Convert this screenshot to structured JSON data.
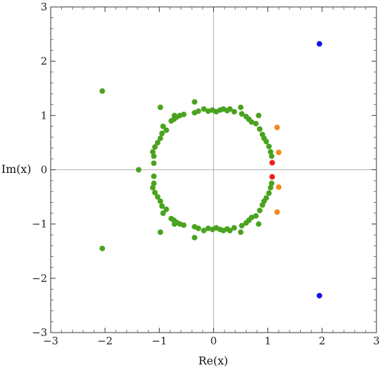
{
  "chart_data": {
    "type": "scatter",
    "title": "",
    "xlabel": "Re(x)",
    "ylabel": "Im(x)",
    "xlim": [
      -3,
      3
    ],
    "ylim": [
      -3,
      3
    ],
    "xticks": [
      -3,
      -2,
      -1,
      0,
      1,
      2,
      3
    ],
    "yticks": [
      -3,
      -2,
      -1,
      0,
      1,
      2,
      3
    ],
    "xtick_labels": [
      "−3",
      "−2",
      "−1",
      "0",
      "1",
      "2",
      "3"
    ],
    "ytick_labels": [
      "−3",
      "−2",
      "−1",
      "0",
      "1",
      "2",
      "3"
    ],
    "grid": false,
    "zero_lines": true,
    "series": [
      {
        "color": "#4aa31f",
        "points": [
          [
            -2.05,
            1.45
          ],
          [
            -2.05,
            -1.45
          ],
          [
            -1.38,
            0.0
          ],
          [
            -1.1,
            0.25
          ],
          [
            -1.1,
            0.12
          ],
          [
            -1.12,
            0.33
          ],
          [
            -1.08,
            0.42
          ],
          [
            -1.03,
            0.5
          ],
          [
            -0.98,
            0.58
          ],
          [
            -0.95,
            0.67
          ],
          [
            -0.93,
            0.8
          ],
          [
            -0.87,
            0.73
          ],
          [
            -0.78,
            0.9
          ],
          [
            -0.73,
            0.93
          ],
          [
            -0.68,
            0.97
          ],
          [
            -0.62,
            1.0
          ],
          [
            -0.55,
            1.02
          ],
          [
            -0.98,
            1.15
          ],
          [
            -0.72,
            1.0
          ],
          [
            -0.35,
            1.25
          ],
          [
            -0.35,
            1.05
          ],
          [
            -0.28,
            1.08
          ],
          [
            -0.18,
            1.12
          ],
          [
            -0.1,
            1.08
          ],
          [
            -0.02,
            1.1
          ],
          [
            0.05,
            1.07
          ],
          [
            0.12,
            1.1
          ],
          [
            0.18,
            1.12
          ],
          [
            0.25,
            1.09
          ],
          [
            0.3,
            1.12
          ],
          [
            0.38,
            1.07
          ],
          [
            0.5,
            1.15
          ],
          [
            0.52,
            1.03
          ],
          [
            0.6,
            0.98
          ],
          [
            0.65,
            0.93
          ],
          [
            0.7,
            0.88
          ],
          [
            0.83,
            1.0
          ],
          [
            0.78,
            0.85
          ],
          [
            0.85,
            0.75
          ],
          [
            0.9,
            0.65
          ],
          [
            0.93,
            0.58
          ],
          [
            0.97,
            0.52
          ],
          [
            1.02,
            0.43
          ],
          [
            1.05,
            0.33
          ],
          [
            1.07,
            0.25
          ],
          [
            -1.1,
            -0.25
          ],
          [
            -1.1,
            -0.12
          ],
          [
            -1.12,
            -0.33
          ],
          [
            -1.08,
            -0.42
          ],
          [
            -1.03,
            -0.5
          ],
          [
            -0.98,
            -0.58
          ],
          [
            -0.95,
            -0.67
          ],
          [
            -0.93,
            -0.8
          ],
          [
            -0.87,
            -0.73
          ],
          [
            -0.78,
            -0.9
          ],
          [
            -0.73,
            -0.93
          ],
          [
            -0.68,
            -0.97
          ],
          [
            -0.62,
            -1.0
          ],
          [
            -0.55,
            -1.02
          ],
          [
            -0.98,
            -1.15
          ],
          [
            -0.72,
            -1.0
          ],
          [
            -0.35,
            -1.25
          ],
          [
            -0.35,
            -1.05
          ],
          [
            -0.28,
            -1.08
          ],
          [
            -0.18,
            -1.12
          ],
          [
            -0.1,
            -1.08
          ],
          [
            -0.02,
            -1.1
          ],
          [
            0.05,
            -1.07
          ],
          [
            0.12,
            -1.1
          ],
          [
            0.18,
            -1.12
          ],
          [
            0.25,
            -1.09
          ],
          [
            0.3,
            -1.12
          ],
          [
            0.38,
            -1.07
          ],
          [
            0.5,
            -1.15
          ],
          [
            0.52,
            -1.03
          ],
          [
            0.6,
            -0.98
          ],
          [
            0.65,
            -0.93
          ],
          [
            0.7,
            -0.88
          ],
          [
            0.83,
            -1.0
          ],
          [
            0.78,
            -0.85
          ],
          [
            0.85,
            -0.75
          ],
          [
            0.9,
            -0.65
          ],
          [
            0.93,
            -0.58
          ],
          [
            0.97,
            -0.52
          ],
          [
            1.02,
            -0.43
          ],
          [
            1.05,
            -0.33
          ],
          [
            1.07,
            -0.25
          ]
        ]
      },
      {
        "color": "#f28a1e",
        "points": [
          [
            1.17,
            0.78
          ],
          [
            1.2,
            0.32
          ],
          [
            1.2,
            -0.32
          ],
          [
            1.17,
            -0.78
          ]
        ]
      },
      {
        "color": "#ee1c1c",
        "points": [
          [
            1.08,
            0.13
          ],
          [
            1.08,
            -0.13
          ]
        ]
      },
      {
        "color": "#1414e6",
        "points": [
          [
            1.95,
            2.32
          ],
          [
            1.95,
            -2.32
          ]
        ]
      }
    ]
  }
}
